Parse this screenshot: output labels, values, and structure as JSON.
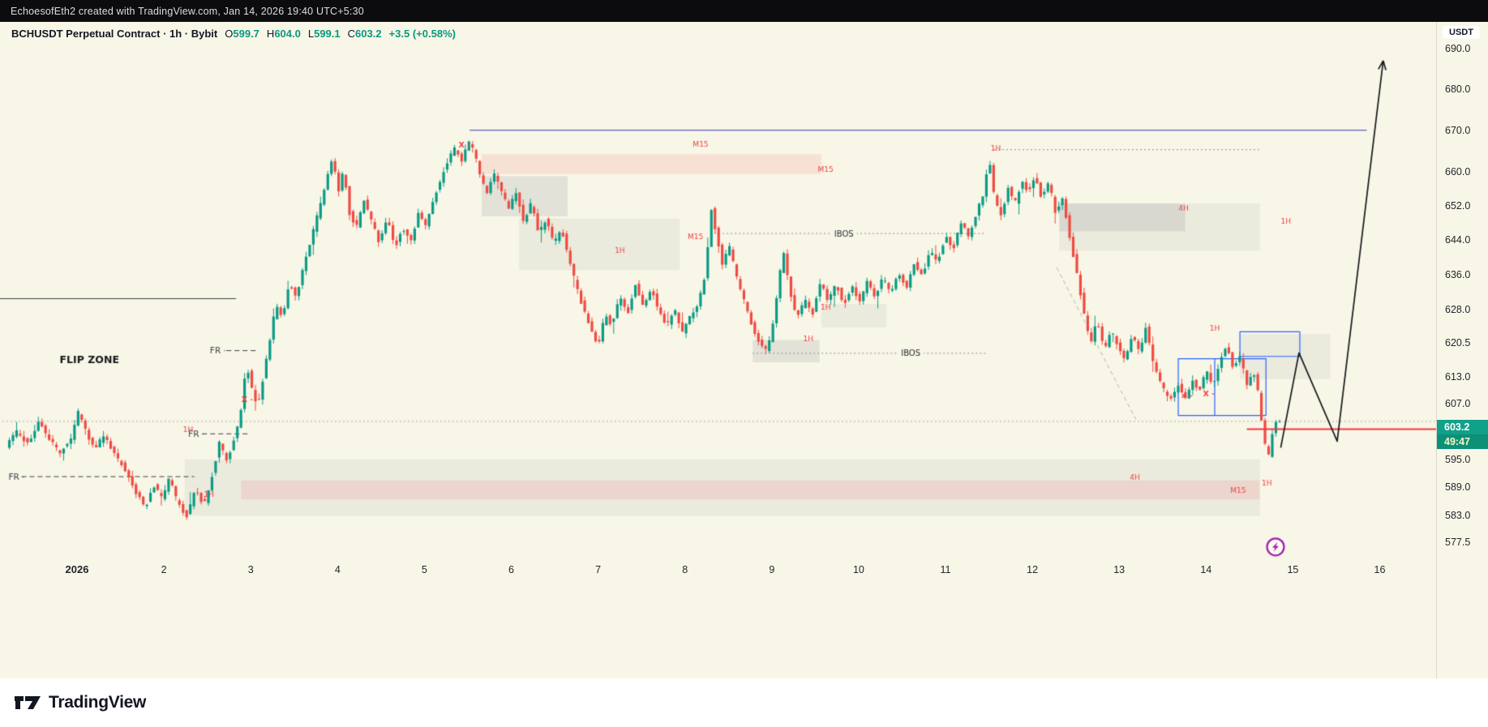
{
  "meta": {
    "attribution": "EchoesofEth2 created with TradingView.com, Jan 14, 2026 19:40 UTC+5:30"
  },
  "header": {
    "symbol_title": "BCHUSDT Perpetual Contract · 1h · Bybit",
    "ohlc": {
      "o_label": "O",
      "o_value": "599.7",
      "h_label": "H",
      "h_value": "604.0",
      "l_label": "L",
      "l_value": "599.1",
      "c_label": "C",
      "c_value": "603.2",
      "change": "+3.5 (+0.58%)"
    }
  },
  "axes": {
    "currency": "USDT",
    "price_ticks": [
      "690.0",
      "680.0",
      "670.0",
      "660.0",
      "652.0",
      "644.0",
      "636.0",
      "628.0",
      "620.5",
      "613.0",
      "607.0",
      "595.0",
      "589.0",
      "583.0",
      "577.5"
    ],
    "time_ticks": [
      "2026",
      "2",
      "3",
      "4",
      "5",
      "6",
      "7",
      "8",
      "9",
      "10",
      "11",
      "12",
      "13",
      "14",
      "15",
      "16"
    ]
  },
  "price_label": {
    "value": "603.2",
    "countdown": "49:47"
  },
  "footer": {
    "brand": "TradingView"
  },
  "chart_data": {
    "type": "candlestick",
    "symbol": "BCHUSDT",
    "market": "Perpetual Contract",
    "interval": "1h",
    "exchange": "Bybit",
    "scale": "log",
    "last_ohlc": {
      "open": 599.7,
      "high": 604.0,
      "low": 599.1,
      "close": 603.2,
      "change": "+3.5",
      "change_pct": "+0.58%"
    },
    "ylim": [
      577.5,
      690.0
    ],
    "t_start": 0.2,
    "t_end": 14.83,
    "last_close": 603.2,
    "colors": {
      "up": "#0a9a84",
      "down": "#ef4a42",
      "blue_line": "#5d5fbe",
      "blue_box": "#2962ff",
      "red": "#f23645",
      "dark_line": "#3a3d45",
      "muted": "#8a8d94",
      "light": "#a8aaae",
      "zone_gray": "rgba(120,123,134,0.16)",
      "zone_gray_light": "rgba(120,123,134,0.10)",
      "zone_pink": "rgba(242,54,69,0.11)",
      "label_red": "#ef4040",
      "ink": "#17181c",
      "purple": "#a21caf"
    },
    "price_path": [
      [
        0.2,
        597.5
      ],
      [
        0.33,
        601.0
      ],
      [
        0.46,
        598.0
      ],
      [
        0.58,
        603.0
      ],
      [
        0.7,
        599.5
      ],
      [
        0.82,
        596.5
      ],
      [
        0.94,
        599.0
      ],
      [
        1.04,
        605.5
      ],
      [
        1.12,
        601.0
      ],
      [
        1.22,
        597.5
      ],
      [
        1.34,
        600.0
      ],
      [
        1.46,
        596.0
      ],
      [
        1.58,
        592.5
      ],
      [
        1.7,
        588.0
      ],
      [
        1.8,
        584.5
      ],
      [
        1.9,
        589.5
      ],
      [
        2.0,
        586.5
      ],
      [
        2.08,
        591.0
      ],
      [
        2.18,
        585.5
      ],
      [
        2.28,
        583.0
      ],
      [
        2.38,
        588.5
      ],
      [
        2.48,
        585.0
      ],
      [
        2.58,
        592.0
      ],
      [
        2.66,
        598.5
      ],
      [
        2.74,
        594.5
      ],
      [
        2.82,
        599.0
      ],
      [
        2.9,
        604.0
      ],
      [
        2.97,
        616.0
      ],
      [
        3.03,
        610.5
      ],
      [
        3.1,
        606.0
      ],
      [
        3.17,
        613.5
      ],
      [
        3.24,
        621.0
      ],
      [
        3.31,
        629.5
      ],
      [
        3.38,
        626.0
      ],
      [
        3.46,
        634.0
      ],
      [
        3.54,
        630.5
      ],
      [
        3.62,
        637.5
      ],
      [
        3.71,
        644.0
      ],
      [
        3.8,
        650.5
      ],
      [
        3.88,
        657.0
      ],
      [
        3.96,
        663.5
      ],
      [
        4.03,
        655.0
      ],
      [
        4.09,
        660.5
      ],
      [
        4.16,
        650.0
      ],
      [
        4.24,
        647.0
      ],
      [
        4.32,
        653.5
      ],
      [
        4.41,
        648.5
      ],
      [
        4.5,
        643.5
      ],
      [
        4.59,
        649.5
      ],
      [
        4.68,
        642.0
      ],
      [
        4.77,
        647.0
      ],
      [
        4.86,
        643.5
      ],
      [
        4.95,
        650.0
      ],
      [
        5.03,
        647.0
      ],
      [
        5.12,
        653.0
      ],
      [
        5.21,
        658.5
      ],
      [
        5.3,
        663.0
      ],
      [
        5.38,
        666.0
      ],
      [
        5.45,
        662.5
      ],
      [
        5.52,
        667.5
      ],
      [
        5.59,
        665.0
      ],
      [
        5.66,
        659.0
      ],
      [
        5.74,
        654.5
      ],
      [
        5.82,
        659.5
      ],
      [
        5.9,
        656.0
      ],
      [
        5.99,
        651.0
      ],
      [
        6.07,
        655.5
      ],
      [
        6.16,
        648.5
      ],
      [
        6.25,
        652.5
      ],
      [
        6.34,
        645.5
      ],
      [
        6.42,
        649.0
      ],
      [
        6.51,
        643.0
      ],
      [
        6.6,
        646.5
      ],
      [
        6.69,
        639.0
      ],
      [
        6.78,
        632.5
      ],
      [
        6.87,
        627.0
      ],
      [
        6.96,
        622.5
      ],
      [
        7.03,
        620.0
      ],
      [
        7.1,
        627.5
      ],
      [
        7.18,
        624.0
      ],
      [
        7.27,
        631.5
      ],
      [
        7.36,
        627.0
      ],
      [
        7.45,
        633.5
      ],
      [
        7.54,
        629.0
      ],
      [
        7.63,
        633.0
      ],
      [
        7.72,
        627.5
      ],
      [
        7.81,
        624.5
      ],
      [
        7.9,
        628.0
      ],
      [
        7.99,
        623.0
      ],
      [
        8.08,
        626.5
      ],
      [
        8.17,
        629.5
      ],
      [
        8.26,
        636.0
      ],
      [
        8.32,
        652.0
      ],
      [
        8.38,
        645.5
      ],
      [
        8.45,
        638.0
      ],
      [
        8.53,
        642.5
      ],
      [
        8.62,
        635.0
      ],
      [
        8.71,
        629.5
      ],
      [
        8.8,
        624.0
      ],
      [
        8.89,
        620.0
      ],
      [
        8.97,
        618.5
      ],
      [
        9.04,
        626.0
      ],
      [
        9.11,
        636.0
      ],
      [
        9.16,
        641.0
      ],
      [
        9.23,
        632.0
      ],
      [
        9.31,
        626.0
      ],
      [
        9.4,
        630.5
      ],
      [
        9.49,
        627.0
      ],
      [
        9.58,
        634.5
      ],
      [
        9.67,
        630.0
      ],
      [
        9.76,
        634.0
      ],
      [
        9.85,
        629.0
      ],
      [
        9.94,
        633.5
      ],
      [
        10.03,
        629.5
      ],
      [
        10.12,
        634.5
      ],
      [
        10.21,
        630.5
      ],
      [
        10.3,
        635.5
      ],
      [
        10.39,
        631.5
      ],
      [
        10.48,
        636.5
      ],
      [
        10.57,
        633.0
      ],
      [
        10.66,
        638.5
      ],
      [
        10.75,
        635.5
      ],
      [
        10.84,
        641.5
      ],
      [
        10.93,
        639.0
      ],
      [
        11.02,
        645.0
      ],
      [
        11.11,
        642.0
      ],
      [
        11.2,
        648.0
      ],
      [
        11.29,
        644.5
      ],
      [
        11.38,
        650.5
      ],
      [
        11.46,
        655.0
      ],
      [
        11.52,
        663.5
      ],
      [
        11.58,
        654.0
      ],
      [
        11.66,
        649.5
      ],
      [
        11.74,
        656.0
      ],
      [
        11.82,
        652.5
      ],
      [
        11.9,
        658.0
      ],
      [
        11.98,
        655.0
      ],
      [
        12.05,
        659.5
      ],
      [
        12.13,
        653.5
      ],
      [
        12.21,
        657.5
      ],
      [
        12.29,
        650.0
      ],
      [
        12.37,
        654.0
      ],
      [
        12.45,
        644.5
      ],
      [
        12.53,
        636.5
      ],
      [
        12.61,
        627.5
      ],
      [
        12.69,
        620.5
      ],
      [
        12.77,
        625.5
      ],
      [
        12.85,
        618.5
      ],
      [
        12.93,
        623.5
      ],
      [
        13.01,
        619.5
      ],
      [
        13.09,
        616.5
      ],
      [
        13.17,
        622.5
      ],
      [
        13.25,
        618.5
      ],
      [
        13.33,
        624.5
      ],
      [
        13.41,
        616.0
      ],
      [
        13.5,
        611.5
      ],
      [
        13.6,
        607.5
      ],
      [
        13.7,
        611.0
      ],
      [
        13.78,
        608.0
      ],
      [
        13.86,
        612.5
      ],
      [
        13.94,
        609.5
      ],
      [
        14.02,
        614.5
      ],
      [
        14.1,
        610.5
      ],
      [
        14.18,
        616.5
      ],
      [
        14.26,
        620.5
      ],
      [
        14.33,
        614.5
      ],
      [
        14.41,
        617.5
      ],
      [
        14.49,
        611.5
      ],
      [
        14.56,
        614.5
      ],
      [
        14.63,
        608.5
      ],
      [
        14.69,
        598.5
      ],
      [
        14.74,
        595.5
      ],
      [
        14.78,
        600.5
      ],
      [
        14.83,
        603.2
      ]
    ],
    "zones": [
      {
        "name": "demand-bottom-gray",
        "t1": 2.24,
        "t2": 14.62,
        "p1": 583.0,
        "p2": 595.0,
        "color": "zone_gray_light"
      },
      {
        "name": "demand-bottom-pink",
        "t1": 2.89,
        "t2": 14.62,
        "p1": 586.5,
        "p2": 590.5,
        "color": "zone_pink"
      },
      {
        "name": "supply-top-pink",
        "t1": 5.66,
        "t2": 9.57,
        "p1": 659.5,
        "p2": 664.2,
        "color": "zone_pink"
      },
      {
        "name": "supply-left-a",
        "t1": 5.66,
        "t2": 6.65,
        "p1": 649.5,
        "p2": 659.0,
        "color": "zone_gray"
      },
      {
        "name": "supply-left-b",
        "t1": 6.09,
        "t2": 7.94,
        "p1": 637.0,
        "p2": 649.0,
        "color": "zone_gray_light"
      },
      {
        "name": "demand-mid",
        "t1": 8.78,
        "t2": 9.55,
        "p1": 616.2,
        "p2": 621.2,
        "color": "zone_gray"
      },
      {
        "name": "zone-small",
        "t1": 9.57,
        "t2": 10.32,
        "p1": 624.0,
        "p2": 629.3,
        "color": "zone_gray_light"
      },
      {
        "name": "supply-right-a",
        "t1": 12.31,
        "t2": 13.76,
        "p1": 646.0,
        "p2": 652.5,
        "color": "zone_gray"
      },
      {
        "name": "supply-right-b",
        "t1": 12.31,
        "t2": 14.62,
        "p1": 641.5,
        "p2": 652.5,
        "color": "zone_gray_light"
      },
      {
        "name": "demand-right",
        "t1": 14.39,
        "t2": 15.43,
        "p1": 612.5,
        "p2": 622.5,
        "color": "zone_gray_light"
      }
    ],
    "levels": [
      {
        "name": "resistance-670",
        "price": 670.0,
        "t1": 5.52,
        "t2": 15.85,
        "style": "solid",
        "color": "blue_line",
        "w": 1.3
      },
      {
        "name": "spike-high",
        "price": 665.3,
        "t1": 11.56,
        "t2": 14.62,
        "style": "dotted",
        "color": "muted",
        "w": 1
      },
      {
        "name": "ibos-upper",
        "price": 645.5,
        "t1": 8.34,
        "t2": 11.47,
        "style": "dotted",
        "color": "muted",
        "w": 1,
        "text": "IBOS",
        "text_t": 9.83
      },
      {
        "name": "ibos-lower",
        "price": 618.2,
        "t1": 8.78,
        "t2": 11.47,
        "style": "dotted",
        "color": "muted",
        "w": 1,
        "text": "IBOS",
        "text_t": 10.6
      },
      {
        "name": "left-level",
        "price": 630.5,
        "t1": 0.0,
        "t2": 2.83,
        "style": "solid",
        "color": "dark_line",
        "w": 1.2
      },
      {
        "name": "fr-lower",
        "price": 591.3,
        "t1": 0.36,
        "t2": 2.35,
        "style": "dashed",
        "color": "dark_line",
        "w": 1,
        "label": "FR ·",
        "label_t": 0.21
      },
      {
        "name": "fr-mid",
        "price": 600.5,
        "t1": 2.44,
        "t2": 3.0,
        "style": "dashed",
        "color": "dark_line",
        "w": 1,
        "label": "FR ·",
        "label_t": 2.28
      },
      {
        "name": "fr-upper",
        "price": 618.8,
        "t1": 2.72,
        "t2": 3.08,
        "style": "dashed",
        "color": "dark_line",
        "w": 1,
        "label": "FR ·",
        "label_t": 2.53
      },
      {
        "name": "last-price-line",
        "price": 603.2,
        "t1": 0.0,
        "t2": 16.72,
        "style": "dotted",
        "color": "light",
        "w": 1
      },
      {
        "name": "entry-line",
        "price": 601.5,
        "t1": 14.47,
        "t2": 16.72,
        "style": "solid",
        "color": "red",
        "w": 2,
        "above": true
      }
    ],
    "boxes": [
      {
        "name": "range-box",
        "t1": 13.68,
        "t2": 14.69,
        "p1": 604.5,
        "p2": 617.0
      },
      {
        "name": "upper-box",
        "t1": 14.39,
        "t2": 15.08,
        "p1": 617.5,
        "p2": 623.0
      }
    ],
    "box_vline": {
      "t": 14.1,
      "p1": 604.5,
      "p2": 617.0
    },
    "diagonal": {
      "t1": 12.28,
      "p1": 637.6,
      "t2": 13.19,
      "p2": 603.7
    },
    "projection": [
      [
        14.86,
        597.5
      ],
      [
        15.07,
        618.3
      ],
      [
        15.51,
        598.9
      ],
      [
        16.04,
        687.0
      ]
    ],
    "event_icon": {
      "t": 14.8,
      "p": 576.5
    },
    "annotations": [
      {
        "kind": "title",
        "text": "FLIP ZONE",
        "t": 0.8,
        "p": 616.8
      },
      {
        "kind": "tf",
        "text": "M15",
        "t": 8.18,
        "p": 666.7
      },
      {
        "kind": "tf",
        "text": "M15",
        "t": 9.62,
        "p": 660.6
      },
      {
        "kind": "tf",
        "text": "M15",
        "t": 8.12,
        "p": 644.8
      },
      {
        "kind": "tf",
        "text": "1H",
        "t": 11.58,
        "p": 665.6
      },
      {
        "kind": "tf",
        "text": "1H",
        "t": 9.42,
        "p": 621.5
      },
      {
        "kind": "tf",
        "text": "1H",
        "t": 9.62,
        "p": 628.6
      },
      {
        "kind": "tf",
        "text": "1H",
        "t": 7.25,
        "p": 641.5
      },
      {
        "kind": "tf",
        "text": "4H",
        "t": 13.74,
        "p": 651.3
      },
      {
        "kind": "tf",
        "text": "1H",
        "t": 14.92,
        "p": 648.3
      },
      {
        "kind": "tf",
        "text": "1H",
        "t": 14.1,
        "p": 623.8
      },
      {
        "kind": "tf",
        "text": "4H",
        "t": 13.18,
        "p": 591.2
      },
      {
        "kind": "tf",
        "text": "M15",
        "t": 14.37,
        "p": 588.4
      },
      {
        "kind": "tf",
        "text": "1H",
        "t": 14.7,
        "p": 589.9
      },
      {
        "kind": "tf",
        "text": "1H",
        "t": 2.28,
        "p": 601.4
      },
      {
        "kind": "tf",
        "text": "1H",
        "t": 2.52,
        "p": 587.5
      },
      {
        "kind": "x",
        "text": "X ·",
        "t": 5.46,
        "p": 666.5
      },
      {
        "kind": "x",
        "text": "X ·",
        "t": 2.96,
        "p": 607.9
      },
      {
        "kind": "x",
        "text": "x –",
        "t": 13.78,
        "p": 608.9
      },
      {
        "kind": "x",
        "text": "X ·",
        "t": 14.03,
        "p": 609.2
      }
    ]
  }
}
